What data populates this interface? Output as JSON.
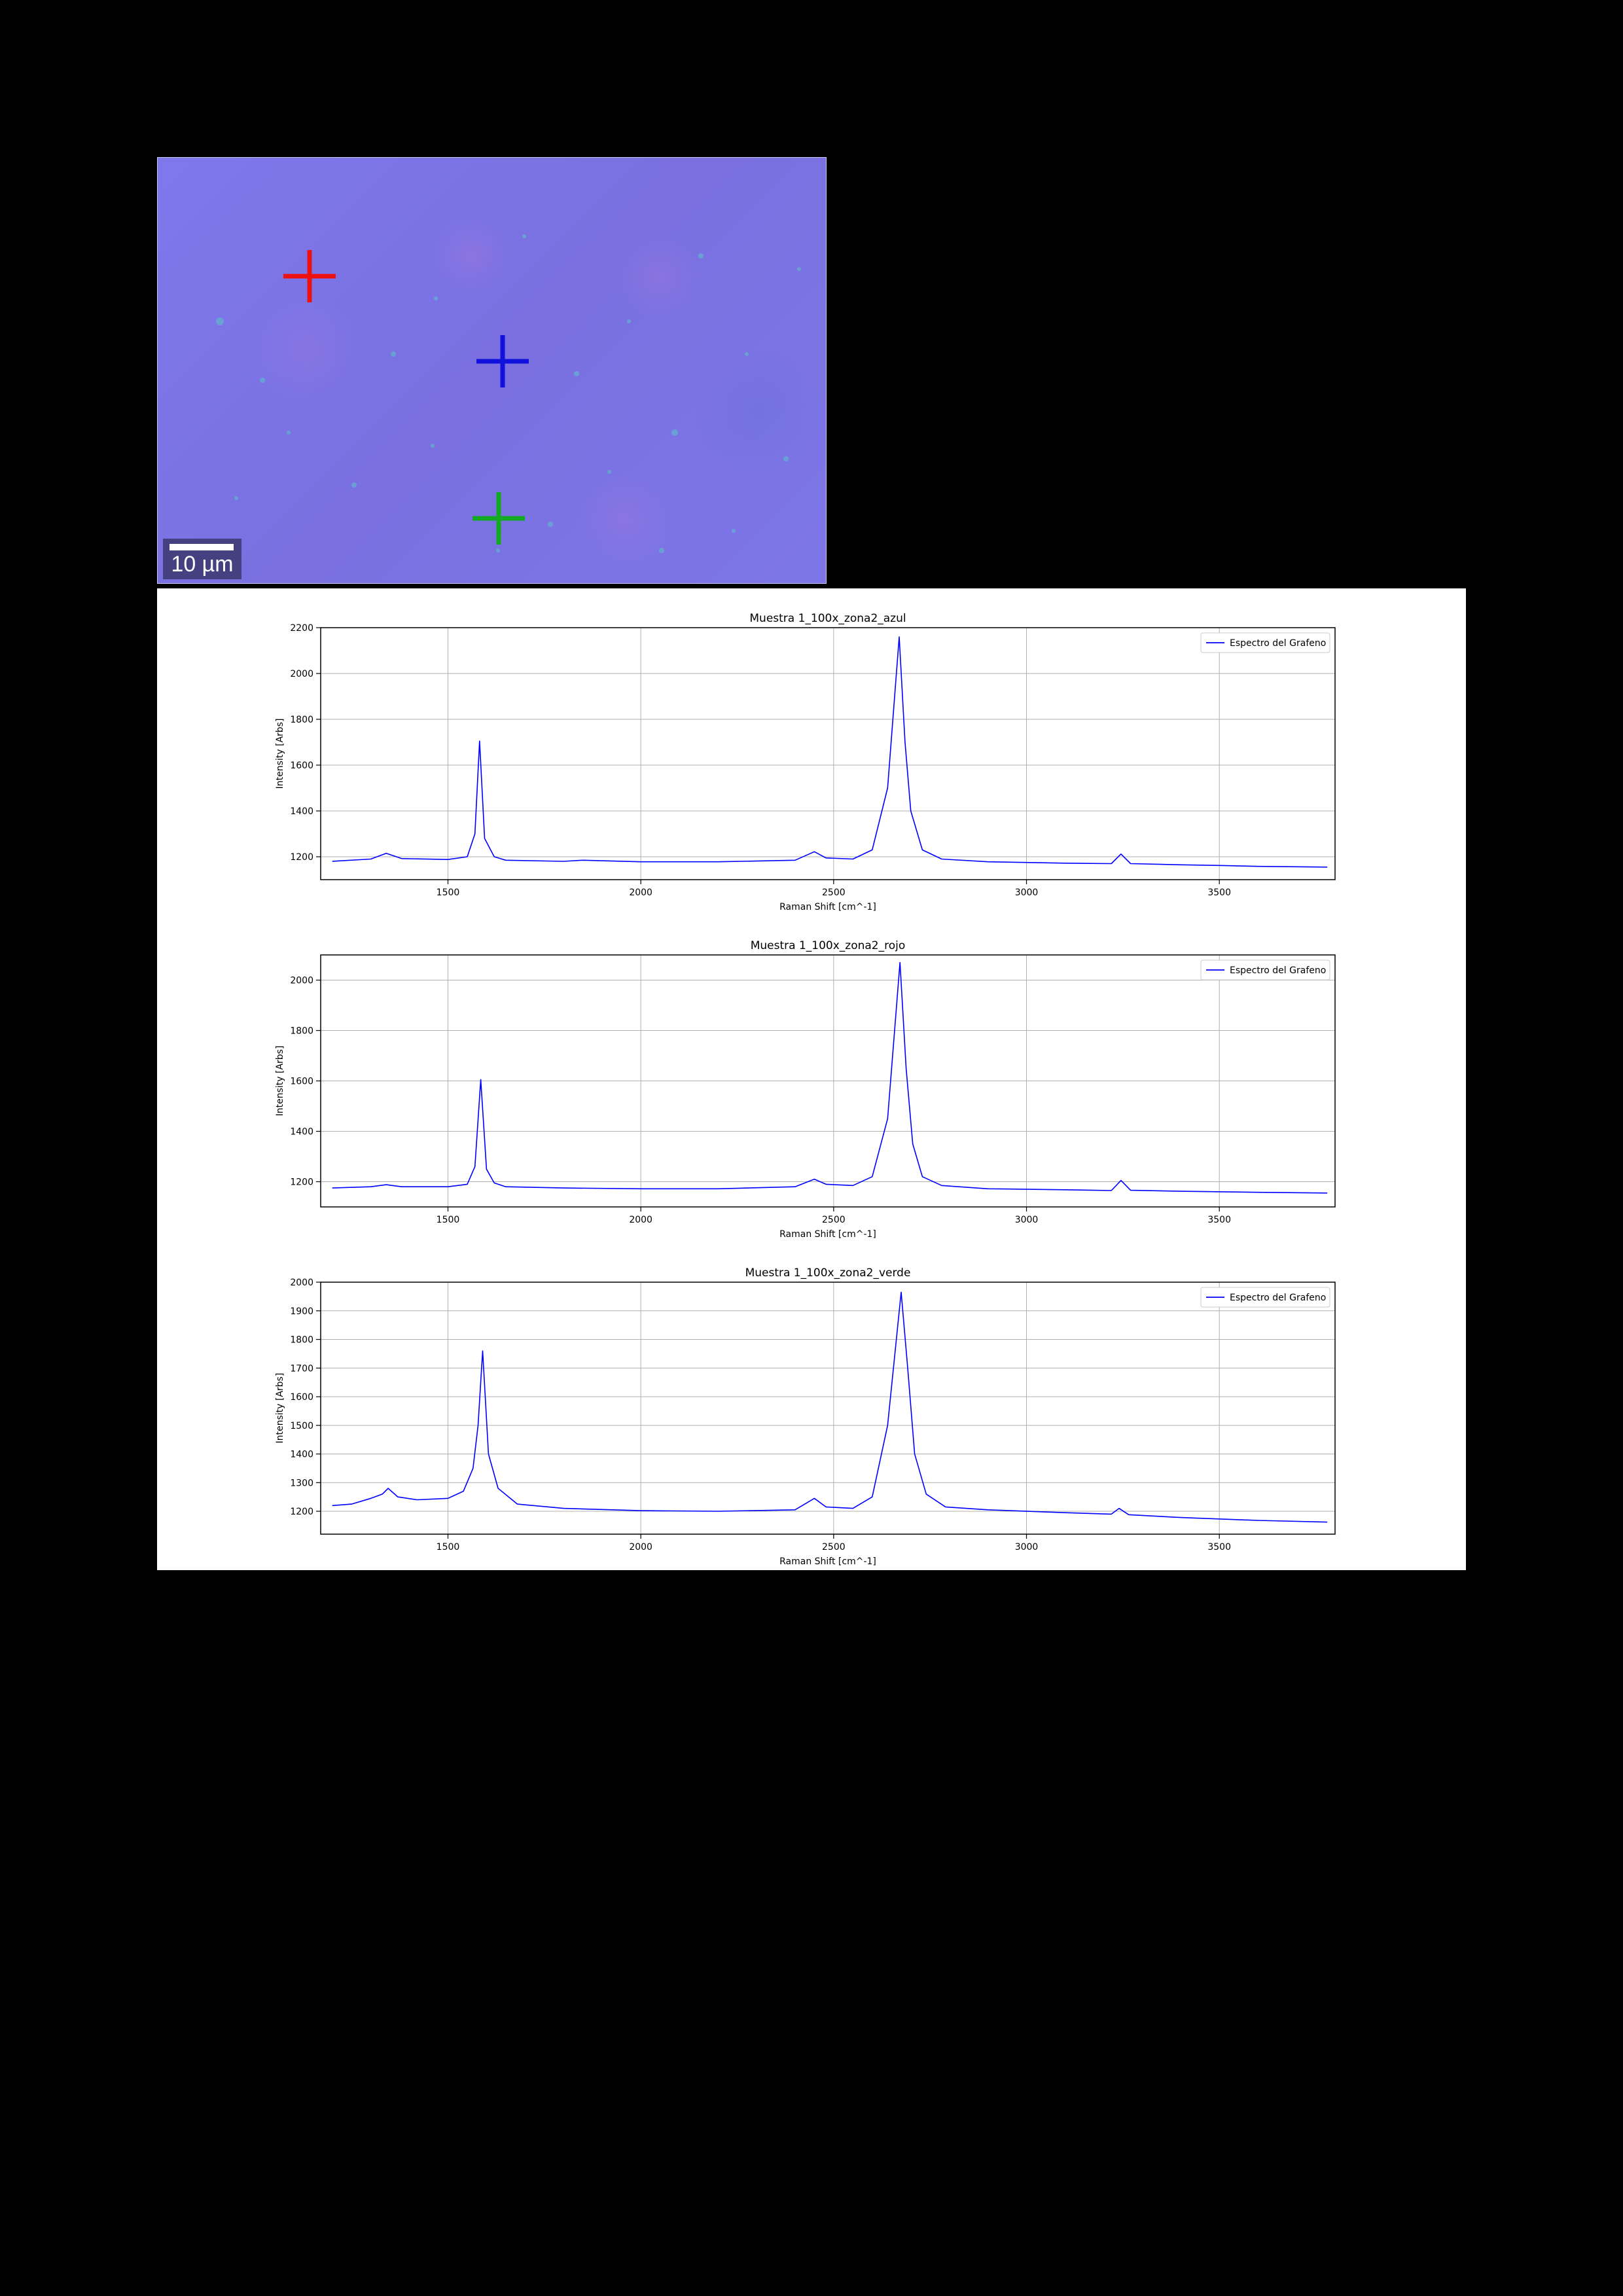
{
  "micrograph": {
    "scalebar_label": "10 µm",
    "markers": [
      {
        "name": "red-crosshair",
        "color": "#ee1111"
      },
      {
        "name": "blue-crosshair",
        "color": "#1111dd"
      },
      {
        "name": "green-crosshair",
        "color": "#11aa22"
      }
    ]
  },
  "chart_data": [
    {
      "type": "line",
      "title": "Muestra 1_100x_zona2_azul",
      "xlabel": "Raman Shift [cm^-1]",
      "ylabel": "Intensity [Arbs]",
      "xlim": [
        1170,
        3800
      ],
      "ylim": [
        1100,
        2200
      ],
      "xticks": [
        1500,
        2000,
        2500,
        3000,
        3500
      ],
      "yticks": [
        1200,
        1400,
        1600,
        1800,
        2000,
        2200
      ],
      "grid": true,
      "legend_position": "top-right",
      "color": "#0000ff",
      "series": [
        {
          "name": "Espectro del Grafeno",
          "x": [
            1200,
            1300,
            1340,
            1380,
            1500,
            1550,
            1570,
            1582,
            1595,
            1620,
            1650,
            1800,
            1850,
            2000,
            2200,
            2400,
            2450,
            2480,
            2550,
            2600,
            2640,
            2670,
            2685,
            2700,
            2730,
            2780,
            2900,
            3100,
            3220,
            3245,
            3270,
            3400,
            3500,
            3600,
            3780
          ],
          "y": [
            1180,
            1190,
            1215,
            1192,
            1188,
            1200,
            1300,
            1705,
            1280,
            1200,
            1185,
            1180,
            1185,
            1178,
            1178,
            1185,
            1222,
            1195,
            1190,
            1230,
            1500,
            2160,
            1700,
            1400,
            1230,
            1190,
            1178,
            1172,
            1170,
            1212,
            1170,
            1165,
            1162,
            1158,
            1155
          ]
        }
      ]
    },
    {
      "type": "line",
      "title": "Muestra 1_100x_zona2_rojo",
      "xlabel": "Raman Shift [cm^-1]",
      "ylabel": "Intensity [Arbs]",
      "xlim": [
        1170,
        3800
      ],
      "ylim": [
        1100,
        2100
      ],
      "xticks": [
        1500,
        2000,
        2500,
        3000,
        3500
      ],
      "yticks": [
        1200,
        1400,
        1600,
        1800,
        2000
      ],
      "grid": true,
      "legend_position": "top-right",
      "color": "#0000ff",
      "series": [
        {
          "name": "Espectro del Grafeno",
          "x": [
            1200,
            1300,
            1340,
            1380,
            1500,
            1550,
            1570,
            1585,
            1600,
            1620,
            1650,
            1800,
            2000,
            2200,
            2400,
            2450,
            2480,
            2550,
            2600,
            2640,
            2672,
            2688,
            2705,
            2730,
            2780,
            2900,
            3100,
            3220,
            3245,
            3270,
            3400,
            3600,
            3780
          ],
          "y": [
            1175,
            1180,
            1188,
            1180,
            1180,
            1190,
            1260,
            1605,
            1250,
            1195,
            1180,
            1175,
            1172,
            1172,
            1180,
            1210,
            1190,
            1185,
            1220,
            1450,
            2070,
            1650,
            1350,
            1220,
            1185,
            1172,
            1168,
            1165,
            1205,
            1166,
            1162,
            1158,
            1155
          ]
        }
      ]
    },
    {
      "type": "line",
      "title": "Muestra 1_100x_zona2_verde",
      "xlabel": "Raman Shift [cm^-1]",
      "ylabel": "Intensity [Arbs]",
      "xlim": [
        1170,
        3800
      ],
      "ylim": [
        1120,
        2000
      ],
      "xticks": [
        1500,
        2000,
        2500,
        3000,
        3500
      ],
      "yticks": [
        1200,
        1300,
        1400,
        1500,
        1600,
        1700,
        1800,
        1900,
        2000
      ],
      "grid": true,
      "legend_position": "top-right",
      "color": "#0000ff",
      "series": [
        {
          "name": "Espectro del Grafeno",
          "x": [
            1200,
            1250,
            1300,
            1330,
            1345,
            1370,
            1420,
            1500,
            1540,
            1565,
            1578,
            1590,
            1605,
            1630,
            1680,
            1800,
            2000,
            2200,
            2400,
            2450,
            2480,
            2550,
            2600,
            2640,
            2675,
            2692,
            2710,
            2740,
            2790,
            2900,
            3100,
            3220,
            3240,
            3265,
            3400,
            3600,
            3780
          ],
          "y": [
            1220,
            1225,
            1245,
            1260,
            1280,
            1250,
            1240,
            1245,
            1270,
            1350,
            1500,
            1760,
            1400,
            1280,
            1225,
            1210,
            1202,
            1200,
            1205,
            1245,
            1215,
            1210,
            1250,
            1500,
            1965,
            1700,
            1400,
            1260,
            1215,
            1205,
            1195,
            1190,
            1210,
            1188,
            1178,
            1168,
            1162
          ]
        }
      ]
    }
  ]
}
